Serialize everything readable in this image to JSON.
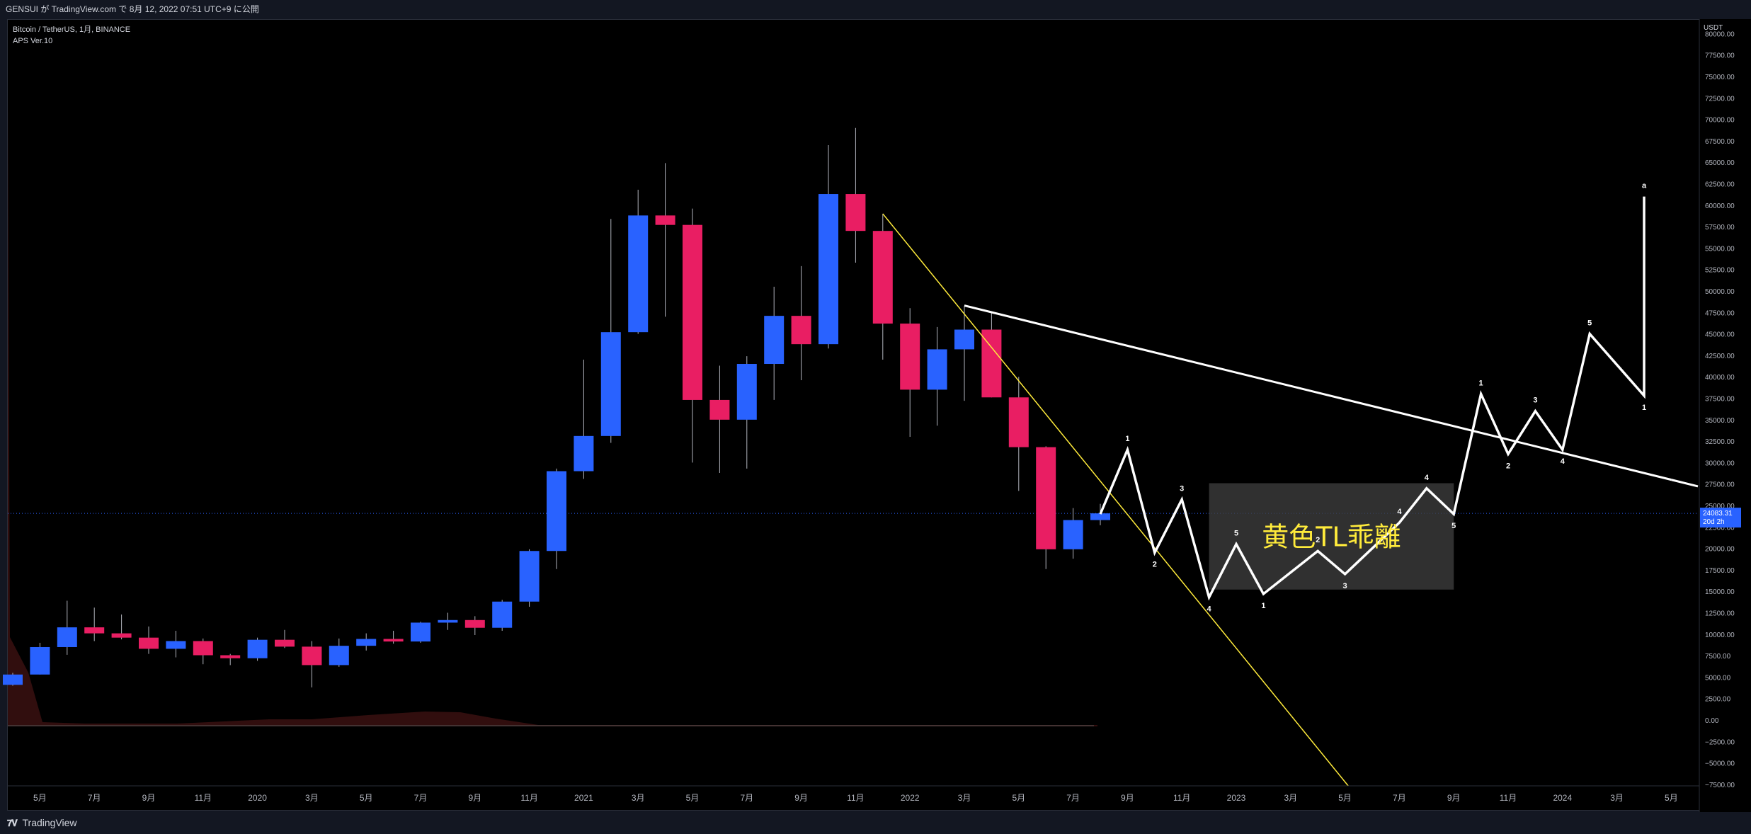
{
  "header": {
    "publish_text": "GENSUI が TradingView.com で 8月 12, 2022 07:51 UTC+9 に公開"
  },
  "legend": {
    "symbol": "Bitcoin / TetherUS, 1月, BINANCE",
    "indicator": "APS Ver.10"
  },
  "footer": {
    "brand": "TradingView",
    "logo": "tradingview-logo"
  },
  "price_axis": {
    "currency": "USDT",
    "current_price": "24083.31",
    "countdown": "20d 2h",
    "ticks": [
      "80000.00",
      "77500.00",
      "75000.00",
      "72500.00",
      "70000.00",
      "67500.00",
      "65000.00",
      "62500.00",
      "60000.00",
      "57500.00",
      "55000.00",
      "52500.00",
      "50000.00",
      "47500.00",
      "45000.00",
      "42500.00",
      "40000.00",
      "37500.00",
      "35000.00",
      "32500.00",
      "30000.00",
      "27500.00",
      "25000.00",
      "22500.00",
      "20000.00",
      "17500.00",
      "15000.00",
      "12500.00",
      "10000.00",
      "7500.00",
      "5000.00",
      "2500.00",
      "0.00",
      "−2500.00",
      "−5000.00",
      "−7500.00"
    ]
  },
  "time_axis": {
    "labels": [
      "5月",
      "7月",
      "9月",
      "11月",
      "2020",
      "3月",
      "5月",
      "7月",
      "9月",
      "11月",
      "2021",
      "3月",
      "5月",
      "7月",
      "9月",
      "11月",
      "2022",
      "3月",
      "5月",
      "7月",
      "9月",
      "11月",
      "2023",
      "3月",
      "5月",
      "7月",
      "9月",
      "11月",
      "2024",
      "3月",
      "5月"
    ],
    "start_month_index": 0
  },
  "colors": {
    "up": "#2962ff",
    "down": "#e91e63",
    "background": "#000000",
    "trendline_yellow": "#ffeb3b",
    "wave_white": "#ffffff",
    "price_label_bg": "#2962ff"
  },
  "annotation_box": {
    "text": "黄色TL乖離"
  },
  "chart_data": {
    "type": "candlestick",
    "title": "Bitcoin / TetherUS, 1月, BINANCE",
    "ylim": [
      -7500,
      80000
    ],
    "grid": false,
    "candles": [
      {
        "t": "2019-04",
        "o": 4100,
        "h": 5500,
        "l": 4000,
        "c": 5300
      },
      {
        "t": "2019-05",
        "o": 5300,
        "h": 9000,
        "l": 5300,
        "c": 8500
      },
      {
        "t": "2019-06",
        "o": 8500,
        "h": 13900,
        "l": 7600,
        "c": 10800
      },
      {
        "t": "2019-07",
        "o": 10800,
        "h": 13100,
        "l": 9200,
        "c": 10100
      },
      {
        "t": "2019-08",
        "o": 10100,
        "h": 12300,
        "l": 9400,
        "c": 9600
      },
      {
        "t": "2019-09",
        "o": 9600,
        "h": 10900,
        "l": 7700,
        "c": 8300
      },
      {
        "t": "2019-10",
        "o": 8300,
        "h": 10400,
        "l": 7300,
        "c": 9200
      },
      {
        "t": "2019-11",
        "o": 9200,
        "h": 9500,
        "l": 6500,
        "c": 7550
      },
      {
        "t": "2019-12",
        "o": 7550,
        "h": 7700,
        "l": 6400,
        "c": 7200
      },
      {
        "t": "2020-01",
        "o": 7200,
        "h": 9600,
        "l": 6900,
        "c": 9350
      },
      {
        "t": "2020-02",
        "o": 9350,
        "h": 10500,
        "l": 8400,
        "c": 8550
      },
      {
        "t": "2020-03",
        "o": 8550,
        "h": 9200,
        "l": 3800,
        "c": 6400
      },
      {
        "t": "2020-04",
        "o": 6400,
        "h": 9500,
        "l": 6200,
        "c": 8650
      },
      {
        "t": "2020-05",
        "o": 8650,
        "h": 10100,
        "l": 8100,
        "c": 9450
      },
      {
        "t": "2020-06",
        "o": 9450,
        "h": 10400,
        "l": 8900,
        "c": 9150
      },
      {
        "t": "2020-07",
        "o": 9150,
        "h": 11450,
        "l": 9000,
        "c": 11350
      },
      {
        "t": "2020-08",
        "o": 11350,
        "h": 12500,
        "l": 10500,
        "c": 11650
      },
      {
        "t": "2020-09",
        "o": 11650,
        "h": 12100,
        "l": 9900,
        "c": 10750
      },
      {
        "t": "2020-10",
        "o": 10750,
        "h": 14000,
        "l": 10400,
        "c": 13800
      },
      {
        "t": "2020-11",
        "o": 13800,
        "h": 19900,
        "l": 13200,
        "c": 19700
      },
      {
        "t": "2020-12",
        "o": 19700,
        "h": 29300,
        "l": 17600,
        "c": 29000
      },
      {
        "t": "2021-01",
        "o": 29000,
        "h": 42000,
        "l": 28100,
        "c": 33100
      },
      {
        "t": "2021-02",
        "o": 33100,
        "h": 58400,
        "l": 32300,
        "c": 45200
      },
      {
        "t": "2021-03",
        "o": 45200,
        "h": 61800,
        "l": 45000,
        "c": 58800
      },
      {
        "t": "2021-04",
        "o": 58800,
        "h": 64900,
        "l": 47000,
        "c": 57700
      },
      {
        "t": "2021-05",
        "o": 57700,
        "h": 59600,
        "l": 30000,
        "c": 37300
      },
      {
        "t": "2021-06",
        "o": 37300,
        "h": 41300,
        "l": 28800,
        "c": 35000
      },
      {
        "t": "2021-07",
        "o": 35000,
        "h": 42400,
        "l": 29300,
        "c": 41500
      },
      {
        "t": "2021-08",
        "o": 41500,
        "h": 50500,
        "l": 37300,
        "c": 47100
      },
      {
        "t": "2021-09",
        "o": 47100,
        "h": 52900,
        "l": 39600,
        "c": 43800
      },
      {
        "t": "2021-10",
        "o": 43800,
        "h": 67000,
        "l": 43300,
        "c": 61300
      },
      {
        "t": "2021-11",
        "o": 61300,
        "h": 69000,
        "l": 53300,
        "c": 57000
      },
      {
        "t": "2021-12",
        "o": 57000,
        "h": 59000,
        "l": 42000,
        "c": 46200
      },
      {
        "t": "2022-01",
        "o": 46200,
        "h": 48000,
        "l": 33000,
        "c": 38500
      },
      {
        "t": "2022-02",
        "o": 38500,
        "h": 45800,
        "l": 34300,
        "c": 43200
      },
      {
        "t": "2022-03",
        "o": 43200,
        "h": 48200,
        "l": 37200,
        "c": 45500
      },
      {
        "t": "2022-04",
        "o": 45500,
        "h": 47400,
        "l": 37600,
        "c": 37600
      },
      {
        "t": "2022-05",
        "o": 37600,
        "h": 40000,
        "l": 26700,
        "c": 31800
      },
      {
        "t": "2022-06",
        "o": 31800,
        "h": 31900,
        "l": 17600,
        "c": 19900
      },
      {
        "t": "2022-07",
        "o": 19900,
        "h": 24700,
        "l": 18800,
        "c": 23300
      },
      {
        "t": "2022-08",
        "o": 23300,
        "h": 25200,
        "l": 22700,
        "c": 24083
      }
    ],
    "wave_path": [
      {
        "t": "2022-08",
        "y": 24000,
        "label": ""
      },
      {
        "t": "2022-09",
        "y": 31500,
        "label": "1"
      },
      {
        "t": "2022-10",
        "y": 19500,
        "label": "2"
      },
      {
        "t": "2022-11",
        "y": 25700,
        "label": "3"
      },
      {
        "t": "2022-12",
        "y": 14300,
        "label": "4"
      },
      {
        "t": "2023-01",
        "y": 20500,
        "label": "5"
      },
      {
        "t": "2023-02",
        "y": 14700,
        "label": "1"
      },
      {
        "t": "2023-04",
        "y": 19700,
        "label": "2"
      },
      {
        "t": "2023-05",
        "y": 17000,
        "label": "3"
      },
      {
        "t": "2023-07",
        "y": 23000,
        "label": "4"
      },
      {
        "t": "2023-08",
        "y": 27000,
        "label": "4"
      },
      {
        "t": "2023-09",
        "y": 24000,
        "label": "5"
      },
      {
        "t": "2023-10",
        "y": 38000,
        "label": "1"
      },
      {
        "t": "2023-11",
        "y": 31000,
        "label": "2"
      },
      {
        "t": "2023-12",
        "y": 36000,
        "label": "3"
      },
      {
        "t": "2024-01",
        "y": 31500,
        "label": "4"
      },
      {
        "t": "2024-02",
        "y": 45000,
        "label": "5"
      },
      {
        "t": "2024-04",
        "y": 37800,
        "label": "1"
      },
      {
        "t": "2024-04",
        "y": 61000,
        "label": "a"
      }
    ],
    "trendlines": [
      {
        "name": "yellow",
        "color": "#ffeb3b",
        "from": {
          "t": "2021-12",
          "y": 59000
        },
        "to": {
          "t": "2023-07",
          "y": -15000
        }
      },
      {
        "name": "white",
        "color": "#ffffff",
        "from": {
          "t": "2022-03",
          "y": 48300
        },
        "to": {
          "t": "2024-05",
          "y": 28000
        }
      }
    ],
    "shaded_box": {
      "from": {
        "t": "2022-12",
        "y": 27600
      },
      "to": {
        "t": "2023-09",
        "y": 15200
      }
    },
    "current_price": 24083.31
  }
}
